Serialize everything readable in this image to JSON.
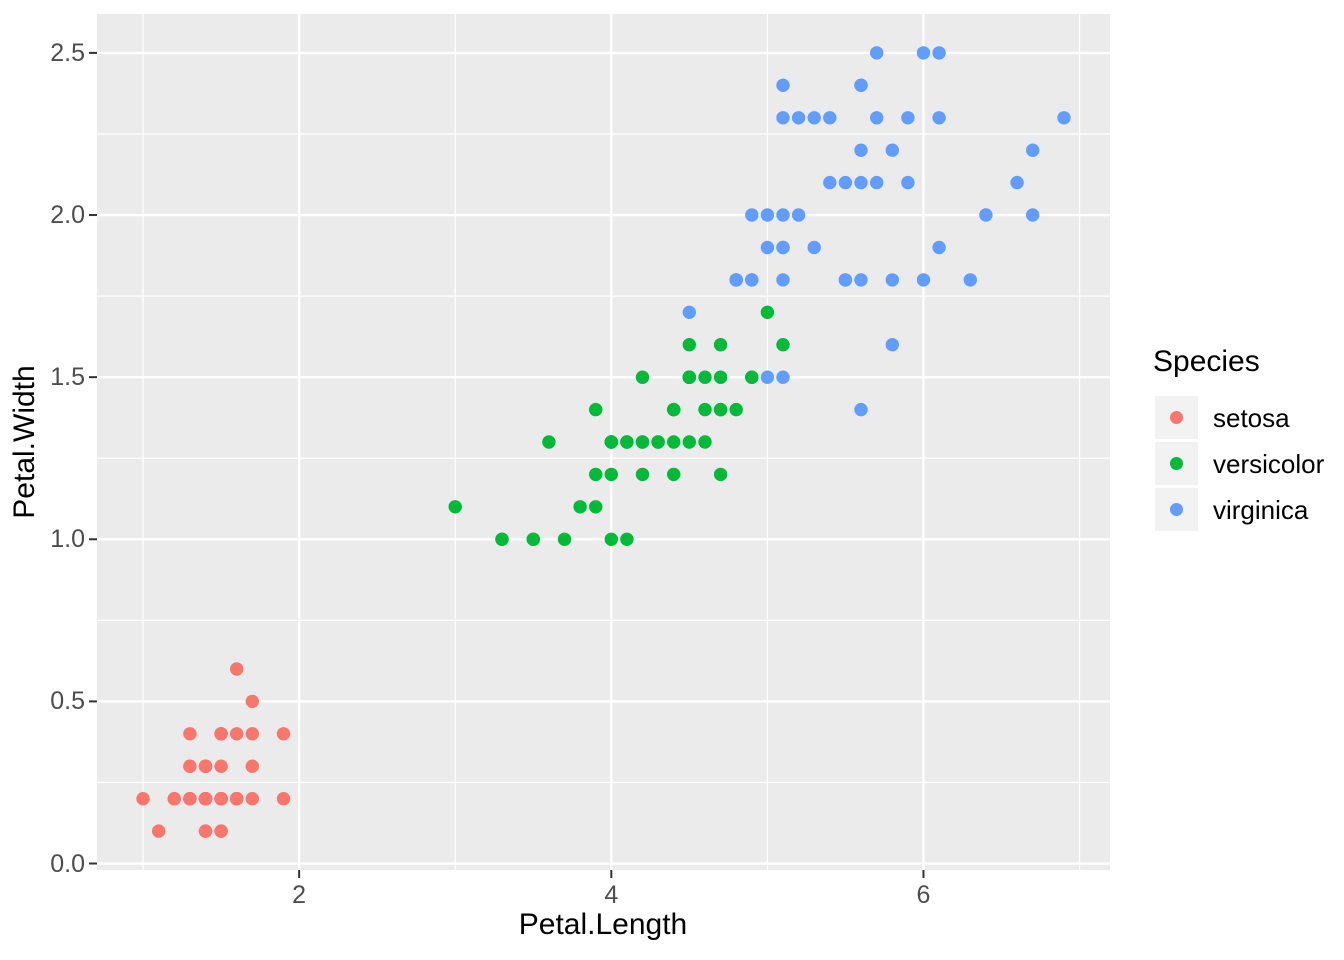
{
  "axes": {
    "x_title": "Petal.Length",
    "y_title": "Petal.Width",
    "x_tick_labels": [
      "2",
      "4",
      "6"
    ],
    "y_tick_labels": [
      "0.0",
      "0.5",
      "1.0",
      "1.5",
      "2.0",
      "2.5"
    ]
  },
  "legend": {
    "title": "Species",
    "entries": [
      {
        "label": "setosa",
        "color": "#F8766D"
      },
      {
        "label": "versicolor",
        "color": "#00BA38"
      },
      {
        "label": "virginica",
        "color": "#619CFF"
      }
    ]
  },
  "colors": {
    "panel_background": "#EBEBEB",
    "gridline": "#FFFFFF",
    "tick_mark": "#333333",
    "tick_label": "#4D4D4D",
    "axis_title": "#000000",
    "legend_key_background": "#F2F2F2"
  },
  "chart_data": {
    "type": "scatter",
    "title": "",
    "xlabel": "Petal.Length",
    "ylabel": "Petal.Width",
    "xlim": [
      0.705,
      7.195
    ],
    "ylim": [
      -0.02,
      2.62
    ],
    "x_major_ticks": [
      2,
      4,
      6
    ],
    "x_minor_gridlines": [
      1,
      3,
      5,
      7
    ],
    "y_major_ticks": [
      0,
      0.5,
      1,
      1.5,
      2,
      2.5
    ],
    "y_minor_gridlines": [
      0.25,
      0.75,
      1.25,
      1.75,
      2.25
    ],
    "grid": "on",
    "legend_position": "right",
    "point_radius_px": 6.7,
    "series": [
      {
        "name": "setosa",
        "color": "#F8766D",
        "points": [
          [
            1.4,
            0.2
          ],
          [
            1.4,
            0.2
          ],
          [
            1.3,
            0.2
          ],
          [
            1.5,
            0.2
          ],
          [
            1.4,
            0.2
          ],
          [
            1.7,
            0.4
          ],
          [
            1.4,
            0.3
          ],
          [
            1.5,
            0.2
          ],
          [
            1.4,
            0.2
          ],
          [
            1.5,
            0.1
          ],
          [
            1.5,
            0.2
          ],
          [
            1.6,
            0.2
          ],
          [
            1.4,
            0.1
          ],
          [
            1.1,
            0.1
          ],
          [
            1.2,
            0.2
          ],
          [
            1.5,
            0.4
          ],
          [
            1.3,
            0.4
          ],
          [
            1.4,
            0.3
          ],
          [
            1.7,
            0.3
          ],
          [
            1.5,
            0.3
          ],
          [
            1.7,
            0.2
          ],
          [
            1.5,
            0.4
          ],
          [
            1.0,
            0.2
          ],
          [
            1.7,
            0.5
          ],
          [
            1.9,
            0.2
          ],
          [
            1.6,
            0.2
          ],
          [
            1.6,
            0.4
          ],
          [
            1.5,
            0.2
          ],
          [
            1.4,
            0.2
          ],
          [
            1.6,
            0.2
          ],
          [
            1.6,
            0.2
          ],
          [
            1.5,
            0.4
          ],
          [
            1.5,
            0.1
          ],
          [
            1.4,
            0.2
          ],
          [
            1.5,
            0.2
          ],
          [
            1.2,
            0.2
          ],
          [
            1.3,
            0.2
          ],
          [
            1.4,
            0.1
          ],
          [
            1.3,
            0.2
          ],
          [
            1.5,
            0.2
          ],
          [
            1.3,
            0.3
          ],
          [
            1.3,
            0.3
          ],
          [
            1.3,
            0.2
          ],
          [
            1.6,
            0.6
          ],
          [
            1.9,
            0.4
          ],
          [
            1.4,
            0.3
          ],
          [
            1.6,
            0.2
          ],
          [
            1.4,
            0.2
          ],
          [
            1.5,
            0.2
          ],
          [
            1.4,
            0.2
          ]
        ]
      },
      {
        "name": "versicolor",
        "color": "#00BA38",
        "points": [
          [
            4.7,
            1.4
          ],
          [
            4.5,
            1.5
          ],
          [
            4.9,
            1.5
          ],
          [
            4.0,
            1.3
          ],
          [
            4.6,
            1.5
          ],
          [
            4.5,
            1.3
          ],
          [
            4.7,
            1.6
          ],
          [
            3.3,
            1.0
          ],
          [
            4.6,
            1.3
          ],
          [
            3.9,
            1.4
          ],
          [
            3.5,
            1.0
          ],
          [
            4.2,
            1.5
          ],
          [
            4.0,
            1.0
          ],
          [
            4.7,
            1.4
          ],
          [
            3.6,
            1.3
          ],
          [
            4.4,
            1.4
          ],
          [
            4.5,
            1.5
          ],
          [
            4.1,
            1.0
          ],
          [
            4.5,
            1.5
          ],
          [
            3.9,
            1.1
          ],
          [
            4.8,
            1.8
          ],
          [
            4.0,
            1.3
          ],
          [
            4.9,
            1.5
          ],
          [
            4.7,
            1.2
          ],
          [
            4.3,
            1.3
          ],
          [
            4.4,
            1.4
          ],
          [
            4.8,
            1.4
          ],
          [
            5.0,
            1.7
          ],
          [
            4.5,
            1.5
          ],
          [
            3.5,
            1.0
          ],
          [
            3.8,
            1.1
          ],
          [
            3.7,
            1.0
          ],
          [
            3.9,
            1.2
          ],
          [
            5.1,
            1.6
          ],
          [
            4.5,
            1.5
          ],
          [
            4.5,
            1.6
          ],
          [
            4.7,
            1.5
          ],
          [
            4.4,
            1.3
          ],
          [
            4.1,
            1.3
          ],
          [
            4.0,
            1.3
          ],
          [
            4.4,
            1.2
          ],
          [
            4.6,
            1.4
          ],
          [
            4.0,
            1.2
          ],
          [
            3.3,
            1.0
          ],
          [
            4.2,
            1.3
          ],
          [
            4.2,
            1.2
          ],
          [
            4.2,
            1.3
          ],
          [
            4.3,
            1.3
          ],
          [
            3.0,
            1.1
          ],
          [
            4.1,
            1.3
          ]
        ]
      },
      {
        "name": "virginica",
        "color": "#619CFF",
        "points": [
          [
            6.0,
            2.5
          ],
          [
            5.1,
            1.9
          ],
          [
            5.9,
            2.1
          ],
          [
            5.6,
            1.8
          ],
          [
            5.8,
            2.2
          ],
          [
            6.6,
            2.1
          ],
          [
            4.5,
            1.7
          ],
          [
            6.3,
            1.8
          ],
          [
            5.8,
            1.8
          ],
          [
            6.1,
            2.5
          ],
          [
            5.1,
            2.0
          ],
          [
            5.3,
            1.9
          ],
          [
            5.5,
            2.1
          ],
          [
            5.0,
            2.0
          ],
          [
            5.1,
            2.4
          ],
          [
            5.3,
            2.3
          ],
          [
            5.5,
            1.8
          ],
          [
            6.7,
            2.2
          ],
          [
            6.9,
            2.3
          ],
          [
            5.0,
            1.5
          ],
          [
            5.7,
            2.3
          ],
          [
            4.9,
            2.0
          ],
          [
            6.7,
            2.0
          ],
          [
            4.9,
            1.8
          ],
          [
            5.7,
            2.1
          ],
          [
            6.0,
            1.8
          ],
          [
            4.8,
            1.8
          ],
          [
            4.9,
            1.8
          ],
          [
            5.6,
            2.1
          ],
          [
            5.8,
            1.6
          ],
          [
            6.1,
            1.9
          ],
          [
            6.4,
            2.0
          ],
          [
            5.6,
            2.2
          ],
          [
            5.1,
            1.5
          ],
          [
            5.6,
            1.4
          ],
          [
            6.1,
            2.3
          ],
          [
            5.6,
            2.4
          ],
          [
            5.5,
            1.8
          ],
          [
            4.8,
            1.8
          ],
          [
            5.4,
            2.1
          ],
          [
            5.6,
            2.4
          ],
          [
            5.1,
            2.3
          ],
          [
            5.1,
            1.9
          ],
          [
            5.9,
            2.3
          ],
          [
            5.7,
            2.5
          ],
          [
            5.2,
            2.3
          ],
          [
            5.0,
            1.9
          ],
          [
            5.2,
            2.0
          ],
          [
            5.4,
            2.3
          ],
          [
            5.1,
            1.8
          ]
        ]
      }
    ]
  }
}
